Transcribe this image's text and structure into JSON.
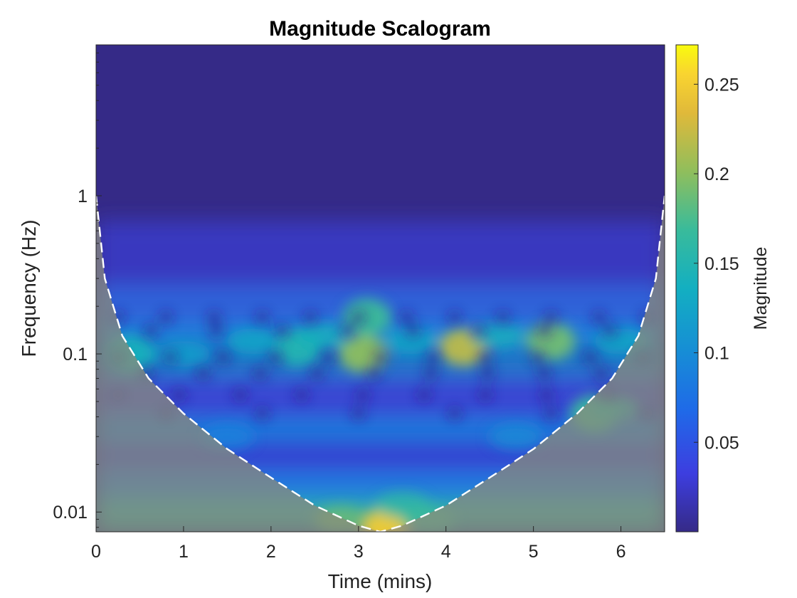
{
  "chart_data": {
    "type": "heatmap",
    "title": "Magnitude Scalogram",
    "xlabel": "Time (mins)",
    "ylabel": "Frequency (Hz)",
    "xlim": [
      0,
      6.5
    ],
    "ylim": [
      0.0075,
      9.0
    ],
    "yscale": "log",
    "x_ticks": [
      0,
      1,
      2,
      3,
      4,
      5,
      6
    ],
    "x_tick_labels": [
      "0",
      "1",
      "2",
      "3",
      "4",
      "5",
      "6"
    ],
    "y_ticks": [
      0.01,
      0.1,
      1
    ],
    "y_tick_labels": [
      "0.01",
      "0.1",
      "1"
    ],
    "colorbar": {
      "label": "Magnitude",
      "range": [
        0.0,
        0.272
      ],
      "ticks": [
        0.05,
        0.1,
        0.15,
        0.2,
        0.25
      ],
      "tick_labels": [
        "0.05",
        "0.1",
        "0.15",
        "0.2",
        "0.25"
      ],
      "colormap": "parula"
    },
    "cone_of_influence": {
      "style": "white dashed line, region outside cone shaded",
      "points": [
        {
          "t": 0.0,
          "f": 1.0
        },
        {
          "t": 0.1,
          "f": 0.3
        },
        {
          "t": 0.3,
          "f": 0.13
        },
        {
          "t": 0.6,
          "f": 0.07
        },
        {
          "t": 1.0,
          "f": 0.042
        },
        {
          "t": 1.5,
          "f": 0.025
        },
        {
          "t": 2.0,
          "f": 0.0165
        },
        {
          "t": 2.5,
          "f": 0.011
        },
        {
          "t": 3.0,
          "f": 0.0082
        },
        {
          "t": 3.25,
          "f": 0.0075
        },
        {
          "t": 3.5,
          "f": 0.0082
        },
        {
          "t": 4.0,
          "f": 0.011
        },
        {
          "t": 4.5,
          "f": 0.0165
        },
        {
          "t": 5.0,
          "f": 0.025
        },
        {
          "t": 5.5,
          "f": 0.042
        },
        {
          "t": 5.9,
          "f": 0.07
        },
        {
          "t": 6.2,
          "f": 0.13
        },
        {
          "t": 6.4,
          "f": 0.3
        },
        {
          "t": 6.5,
          "f": 1.0
        }
      ]
    },
    "hotspots": [
      {
        "t": 4.2,
        "f": 0.11,
        "magnitude": 0.22
      },
      {
        "t": 3.05,
        "f": 0.1,
        "magnitude": 0.2
      },
      {
        "t": 3.1,
        "f": 0.17,
        "magnitude": 0.17
      },
      {
        "t": 5.2,
        "f": 0.12,
        "magnitude": 0.19
      },
      {
        "t": 5.7,
        "f": 0.042,
        "magnitude": 0.17
      },
      {
        "t": 3.3,
        "f": 0.008,
        "magnitude": 0.25
      },
      {
        "t": 2.3,
        "f": 0.11,
        "magnitude": 0.15
      },
      {
        "t": 0.4,
        "f": 0.1,
        "magnitude": 0.14
      }
    ]
  }
}
